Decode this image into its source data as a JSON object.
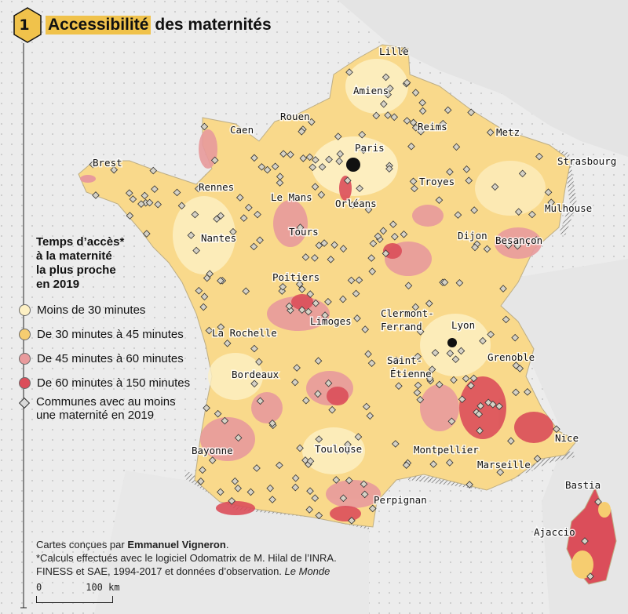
{
  "title": {
    "number": "1",
    "highlight": "Accessibilité",
    "rest": "des maternités"
  },
  "legend": {
    "title": "Temps d’accès*\nà la maternité\nla plus proche\nen 2019",
    "items": [
      {
        "label": "Moins de 30 minutes",
        "color": "#fdf0c4"
      },
      {
        "label": "De 30 minutes à 45 minutes",
        "color": "#f6cd70"
      },
      {
        "label": "De 45 minutes à 60 minutes",
        "color": "#e89a9c"
      },
      {
        "label": "De 60 minutes à 150 minutes",
        "color": "#db4e5a"
      }
    ],
    "maternity_marker": {
      "label": "Communes avec au moins\nune maternité en 2019",
      "icon": "diamond-marker-icon"
    }
  },
  "cities": [
    {
      "name": "Lille"
    },
    {
      "name": "Amiens"
    },
    {
      "name": "Rouen"
    },
    {
      "name": "Caen"
    },
    {
      "name": "Paris"
    },
    {
      "name": "Reims"
    },
    {
      "name": "Metz"
    },
    {
      "name": "Brest"
    },
    {
      "name": "Strasbourg"
    },
    {
      "name": "Rennes"
    },
    {
      "name": "Le Mans"
    },
    {
      "name": "Troyes"
    },
    {
      "name": "Orléans"
    },
    {
      "name": "Mulhouse"
    },
    {
      "name": "Tours"
    },
    {
      "name": "Nantes"
    },
    {
      "name": "Dijon"
    },
    {
      "name": "Besançon"
    },
    {
      "name": "Poitiers"
    },
    {
      "name": "Limoges"
    },
    {
      "name": "Clermont-"
    },
    {
      "name": "Ferrand"
    },
    {
      "name": "Lyon"
    },
    {
      "name": "La Rochelle"
    },
    {
      "name": "Saint-"
    },
    {
      "name": "Étienne"
    },
    {
      "name": "Grenoble"
    },
    {
      "name": "Bordeaux"
    },
    {
      "name": "Nice"
    },
    {
      "name": "Bayonne"
    },
    {
      "name": "Toulouse"
    },
    {
      "name": "Montpellier"
    },
    {
      "name": "Marseille"
    },
    {
      "name": "Bastia"
    },
    {
      "name": "Perpignan"
    },
    {
      "name": "Ajaccio"
    }
  ],
  "credits": {
    "line1_prefix": "Cartes conçues par ",
    "line1_author": "Emmanuel Vigneron",
    "line1_suffix": ".",
    "line2": "*Calculs effectués avec le logiciel Odomatrix de M. Hilal de l’INRA.",
    "line3_prefix": "FINESS et SAE, 1994-2017 et données d’observation. ",
    "line3_source": "Le Monde"
  },
  "scale": {
    "start": "0",
    "end": "100",
    "unit": "km"
  }
}
